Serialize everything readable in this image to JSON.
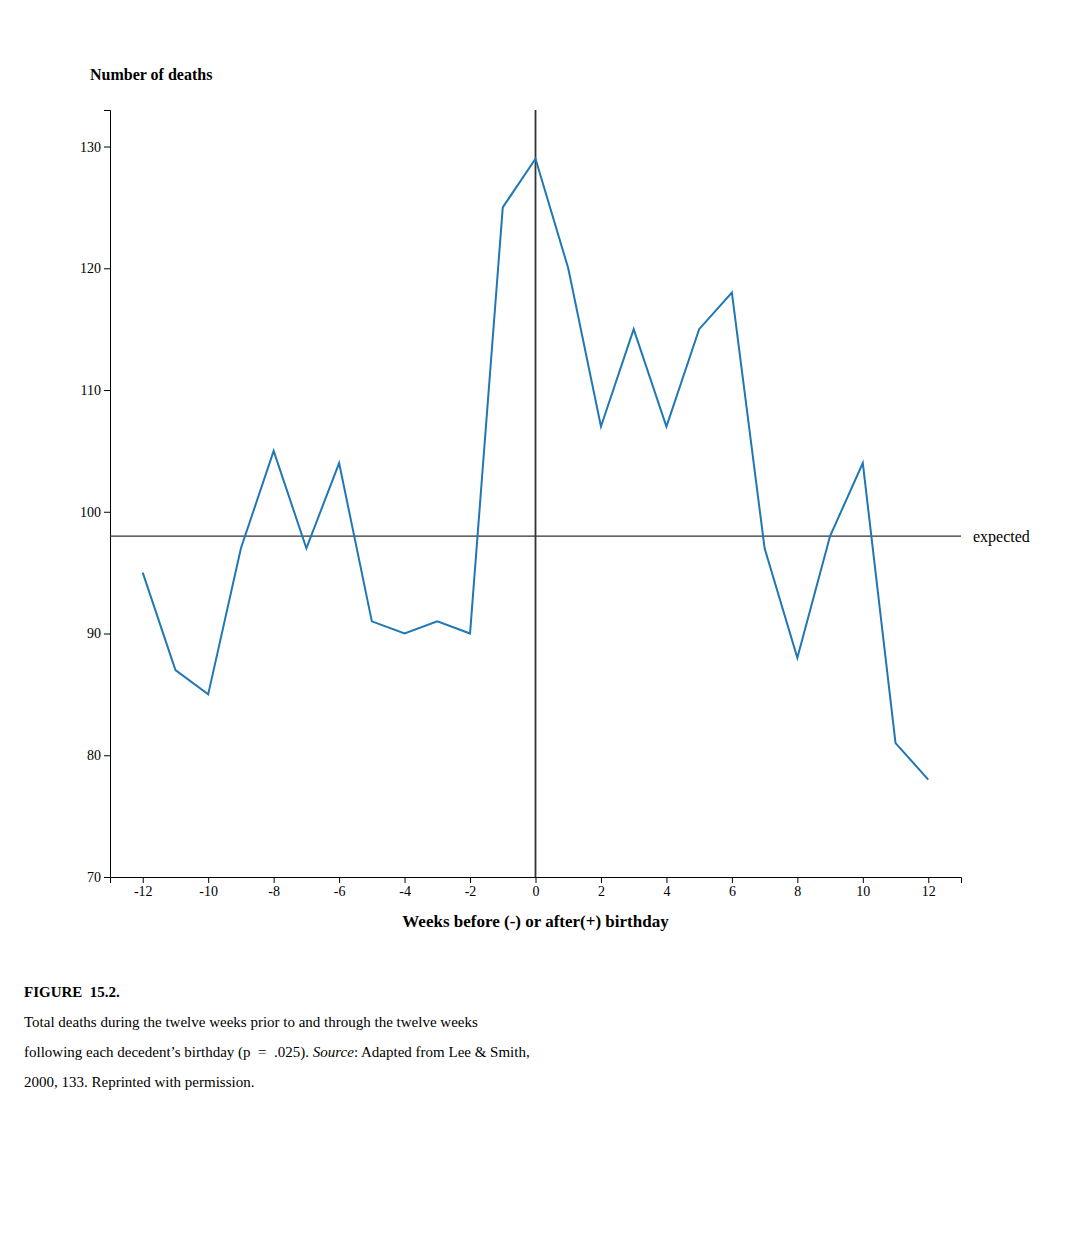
{
  "chart_data": {
    "type": "line",
    "x": [
      -12,
      -11,
      -10,
      -9,
      -8,
      -7,
      -6,
      -5,
      -4,
      -3,
      -2,
      -1,
      0,
      1,
      2,
      3,
      4,
      5,
      6,
      7,
      8,
      9,
      10,
      11,
      12
    ],
    "series": [
      {
        "values": [
          95,
          87,
          85,
          97,
          105,
          97,
          104,
          91,
          90,
          91,
          90,
          125,
          129,
          120,
          107,
          115,
          107,
          115,
          118,
          97,
          88,
          98,
          104,
          81,
          78
        ]
      }
    ],
    "xlim": [
      -13,
      13
    ],
    "ylim": [
      70,
      133
    ],
    "xticks": [
      -12,
      -10,
      -8,
      -6,
      -4,
      -2,
      0,
      2,
      4,
      6,
      8,
      10,
      12
    ],
    "yticks": [
      70,
      80,
      90,
      100,
      110,
      120,
      130
    ],
    "x_label": "Weeks before (-) or after(+) birthday",
    "y_label": "Number of deaths",
    "grid": false,
    "annotations": [
      {
        "type": "hline",
        "y": 98,
        "label": "expected"
      },
      {
        "type": "vline",
        "x": 0
      }
    ],
    "caption_label": "FIGURE  15.2.",
    "caption": [
      [
        "Total deaths during the twelve weeks prior to and through the twelve weeks"
      ],
      [
        "following each decedent’s birthday (p  =  .025). ",
        "Source",
        ": Adapted from Lee & Smith,"
      ],
      [
        "2000, 133. Reprinted with permission."
      ]
    ]
  }
}
